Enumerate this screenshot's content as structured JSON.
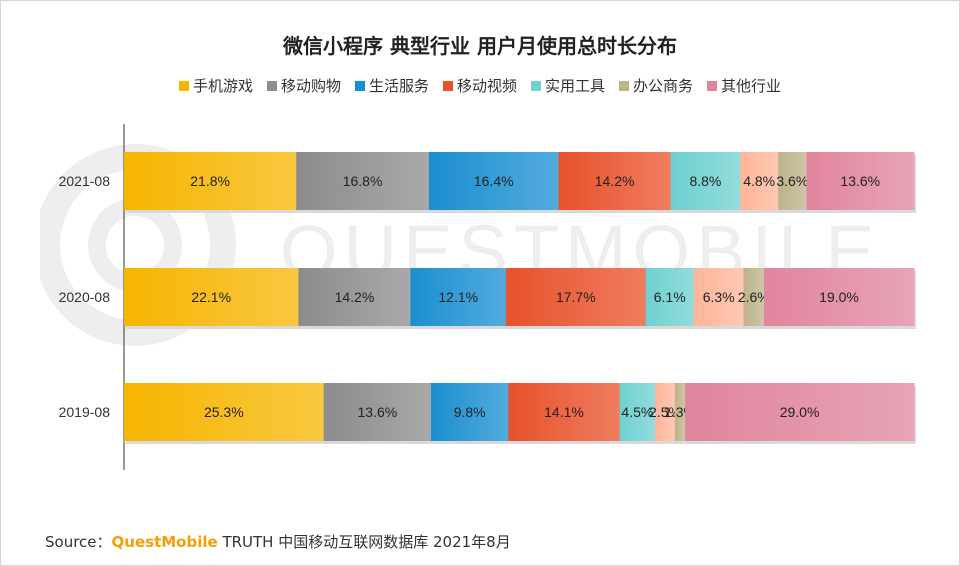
{
  "title": "微信小程序 典型行业 用户月使用总时长分布",
  "legend": [
    {
      "label": "手机游戏",
      "color": "#F7B500"
    },
    {
      "label": "移动购物",
      "color": "#8C8C8C"
    },
    {
      "label": "生活服务",
      "color": "#1A8FD0"
    },
    {
      "label": "移动视频",
      "color": "#E8512B"
    },
    {
      "label": "实用工具",
      "color": "#6FD0D0"
    },
    {
      "label": "办公商务",
      "color": "#BDB38A"
    },
    {
      "label": "其他行业",
      "color": "#E0859D"
    }
  ],
  "chart_data": {
    "type": "bar",
    "orientation": "horizontal",
    "stacked": true,
    "title": "微信小程序 典型行业 用户月使用总时长分布",
    "categories": [
      "2021-08",
      "2020-08",
      "2019-08"
    ],
    "series": [
      {
        "name": "手机游戏",
        "values": [
          21.8,
          22.1,
          25.3
        ],
        "labels": [
          "21.8%",
          "22.1%",
          "25.3%"
        ]
      },
      {
        "name": "移动购物",
        "values": [
          16.8,
          14.2,
          13.6
        ],
        "labels": [
          "16.8%",
          "14.2%",
          "13.6%"
        ]
      },
      {
        "name": "生活服务",
        "values": [
          16.4,
          12.1,
          9.8
        ],
        "labels": [
          "16.4%",
          "12.1%",
          "9.8%"
        ]
      },
      {
        "name": "移动视频",
        "values": [
          14.2,
          17.7,
          14.1
        ],
        "labels": [
          "14.2%",
          "17.7%",
          "14.1%"
        ]
      },
      {
        "name": "实用工具",
        "values": [
          8.8,
          6.1,
          4.5
        ],
        "labels": [
          "8.8%",
          "6.1%",
          "4.5%"
        ]
      },
      {
        "name": "办公商务",
        "values": [
          3.6,
          2.6,
          1.3
        ],
        "labels": [
          "3.6%",
          "2.6%",
          "1.3%"
        ]
      },
      {
        "name": "其他行业",
        "values": [
          13.6,
          19.0,
          29.0
        ],
        "labels": [
          "13.6%",
          "19.0%",
          "29.0%"
        ]
      }
    ],
    "extra_series": {
      "note": "light salmon segment between 实用工具 and 办公商务 (not in legend)",
      "values": [
        4.8,
        6.3,
        2.5
      ],
      "labels": [
        "4.8%",
        "6.3%",
        "2.5%"
      ],
      "color": "#FFB59A"
    },
    "xlim": [
      0,
      100
    ],
    "grid": false,
    "legend_position": "top-center"
  },
  "watermark": {
    "text": "QUESTMOBILE"
  },
  "footer": {
    "source_label": "Source：",
    "brand": "QuestMobile",
    "rest": " TRUTH 中国移动互联网数据库 2021年8月"
  }
}
